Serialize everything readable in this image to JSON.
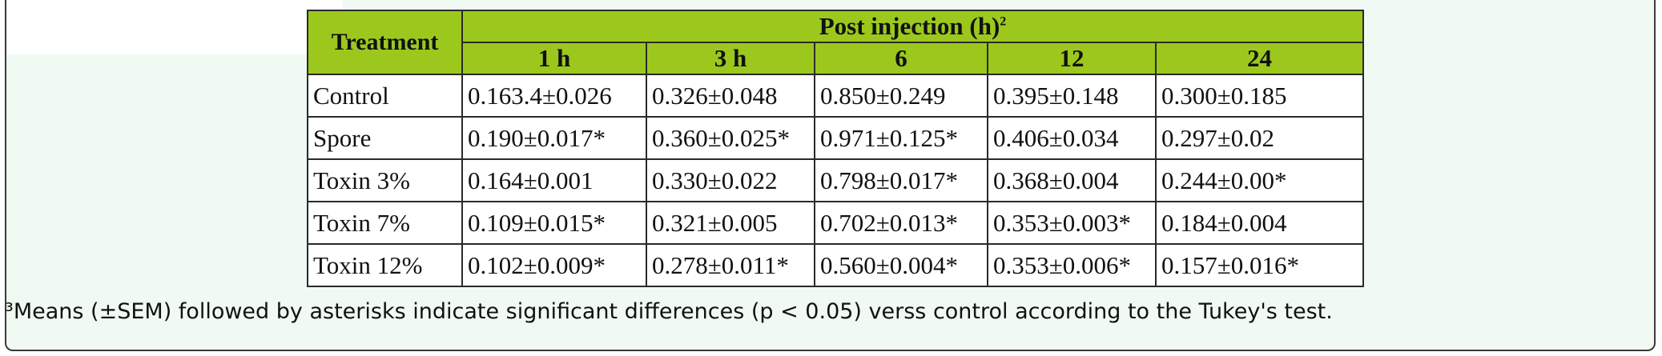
{
  "table": {
    "row_header": "Treatment",
    "group_header": "Post injection (h)",
    "group_header_sup": "2",
    "columns": [
      "1 h",
      "3 h",
      "6",
      "12",
      "24"
    ],
    "rows": [
      {
        "label": "Control",
        "cells": [
          "0.163.4±0.026",
          "0.326±0.048",
          "0.850±0.249",
          "0.395±0.148",
          "0.300±0.185"
        ]
      },
      {
        "label": "Spore",
        "cells": [
          "0.190±0.017*",
          "0.360±0.025*",
          "0.971±0.125*",
          "0.406±0.034",
          "0.297±0.02"
        ]
      },
      {
        "label": "Toxin 3%",
        "cells": [
          "0.164±0.001",
          "0.330±0.022",
          "0.798±0.017*",
          "0.368±0.004",
          "0.244±0.00*"
        ]
      },
      {
        "label": "Toxin 7%",
        "cells": [
          "0.109±0.015*",
          "0.321±0.005",
          "0.702±0.013*",
          "0.353±0.003*",
          "0.184±0.004"
        ]
      },
      {
        "label": "Toxin 12%",
        "cells": [
          "0.102±0.009*",
          "0.278±0.011*",
          "0.560±0.004*",
          "0.353±0.006*",
          "0.157±0.016*"
        ]
      }
    ]
  },
  "footnote": "³Means (±SEM) followed by asterisks indicate significant differences (p < 0.05) verss control according to the Tukey's test.",
  "colors": {
    "header_fill": "#9cc81e",
    "panel_background": "#f1faf2"
  }
}
